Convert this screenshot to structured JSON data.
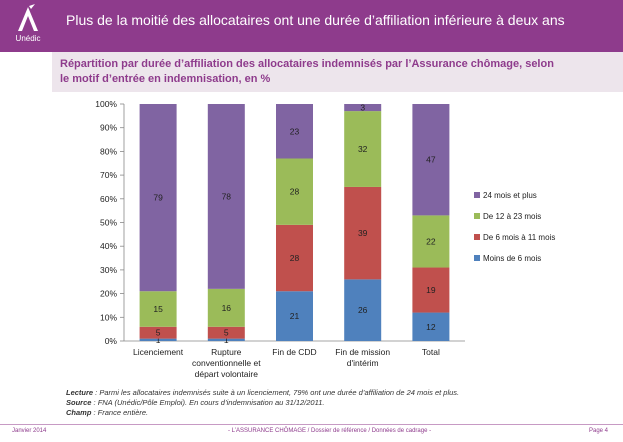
{
  "header": {
    "title": "Plus de la moitié des allocataires ont une durée d’affiliation inférieure à deux ans",
    "logo_text": "Unédic"
  },
  "subtitle": {
    "line1": "Répartition par durée d’affiliation des allocataires indemnisés par l’Assurance chômage, selon",
    "line2": "le motif d’entrée en indemnisation, en %"
  },
  "colors": {
    "header_bg": "#8e3b8c",
    "series": [
      "#4f81bd",
      "#c0504d",
      "#9bbb59",
      "#8064a2"
    ]
  },
  "chart_data": {
    "type": "bar",
    "stacked": true,
    "percent": true,
    "title": "",
    "xlabel": "",
    "ylabel": "",
    "ylim": [
      0,
      100
    ],
    "yticks": [
      "0%",
      "10%",
      "20%",
      "30%",
      "40%",
      "50%",
      "60%",
      "70%",
      "80%",
      "90%",
      "100%"
    ],
    "categories": [
      [
        "Licenciement"
      ],
      [
        "Rupture",
        "conventionnelle et",
        "départ volontaire"
      ],
      [
        "Fin de CDD"
      ],
      [
        "Fin de mission",
        "d'intérim"
      ],
      [
        "Total"
      ]
    ],
    "series": [
      {
        "name": "Moins de 6 mois",
        "values": [
          1,
          1,
          21,
          26,
          12
        ]
      },
      {
        "name": "De 6 mois à 11 mois",
        "values": [
          5,
          5,
          28,
          39,
          19
        ]
      },
      {
        "name": "De 12 à 23 mois",
        "values": [
          15,
          16,
          28,
          32,
          22
        ]
      },
      {
        "name": "24 mois et plus",
        "values": [
          79,
          78,
          23,
          3,
          47
        ]
      }
    ],
    "legend_position": "right"
  },
  "notes": {
    "lecture_label": "Lecture",
    "lecture_text": " : Parmi les allocataires indemnisés suite à un licenciement, 79% ont une durée d’affiliation de 24 mois et plus.",
    "source_label": "Source",
    "source_text": " : FNA (Unédic/Pôle Emploi). En cours d’indemnisation au 31/12/2011.",
    "champ_label": "Champ",
    "champ_text": " : France entière."
  },
  "footer": {
    "date": "Janvier 2014",
    "center": "- L’ASSURANCE CHÔMAGE / Dossier de référence / Données de cadrage -",
    "page": "Page 4"
  }
}
